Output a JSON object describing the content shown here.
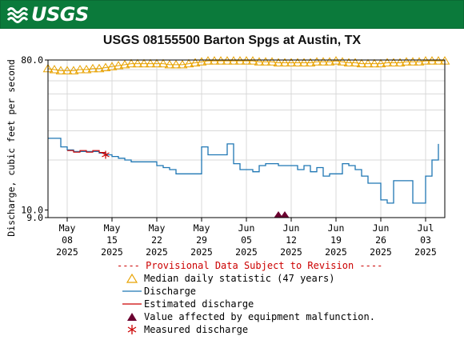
{
  "header": {
    "logo_text": "USGS",
    "logo_icon": "usgs-wave-logo-icon",
    "color": "#0b7a3b"
  },
  "chart_data": {
    "type": "line",
    "title": "USGS 08155500 Barton Spgs at Austin, TX",
    "ylabel": "Discharge, cubic feet per second",
    "y_scale": "log",
    "ylim": [
      9.0,
      80.0
    ],
    "yticks": [
      {
        "value": 9.0,
        "label": "9.0"
      },
      {
        "value": 10.0,
        "label": "10.0"
      },
      {
        "value": 80.0,
        "label": "80.0"
      }
    ],
    "xlim": [
      "2025-05-05",
      "2025-07-06"
    ],
    "xticks": [
      {
        "date": "2025-05-08",
        "line1": "May",
        "line2": "08",
        "line3": "2025"
      },
      {
        "date": "2025-05-15",
        "line1": "May",
        "line2": "15",
        "line3": "2025"
      },
      {
        "date": "2025-05-22",
        "line1": "May",
        "line2": "22",
        "line3": "2025"
      },
      {
        "date": "2025-05-29",
        "line1": "May",
        "line2": "29",
        "line3": "2025"
      },
      {
        "date": "2025-06-05",
        "line1": "Jun",
        "line2": "05",
        "line3": "2025"
      },
      {
        "date": "2025-06-12",
        "line1": "Jun",
        "line2": "12",
        "line3": "2025"
      },
      {
        "date": "2025-06-19",
        "line1": "Jun",
        "line2": "19",
        "line3": "2025"
      },
      {
        "date": "2025-06-26",
        "line1": "Jun",
        "line2": "26",
        "line3": "2025"
      },
      {
        "date": "2025-07-03",
        "line1": "Jul",
        "line2": "03",
        "line3": "2025"
      }
    ],
    "grid": true,
    "series": [
      {
        "name": "Median daily statistic (47 years)",
        "color": "#e8a200",
        "marker": "triangle-open",
        "x": [
          "2025-05-05",
          "2025-05-06",
          "2025-05-07",
          "2025-05-08",
          "2025-05-09",
          "2025-05-10",
          "2025-05-11",
          "2025-05-12",
          "2025-05-13",
          "2025-05-14",
          "2025-05-15",
          "2025-05-16",
          "2025-05-17",
          "2025-05-18",
          "2025-05-19",
          "2025-05-20",
          "2025-05-21",
          "2025-05-22",
          "2025-05-23",
          "2025-05-24",
          "2025-05-25",
          "2025-05-26",
          "2025-05-27",
          "2025-05-28",
          "2025-05-29",
          "2025-05-30",
          "2025-05-31",
          "2025-06-01",
          "2025-06-02",
          "2025-06-03",
          "2025-06-04",
          "2025-06-05",
          "2025-06-06",
          "2025-06-07",
          "2025-06-08",
          "2025-06-09",
          "2025-06-10",
          "2025-06-11",
          "2025-06-12",
          "2025-06-13",
          "2025-06-14",
          "2025-06-15",
          "2025-06-16",
          "2025-06-17",
          "2025-06-18",
          "2025-06-19",
          "2025-06-20",
          "2025-06-21",
          "2025-06-22",
          "2025-06-23",
          "2025-06-24",
          "2025-06-25",
          "2025-06-26",
          "2025-06-27",
          "2025-06-28",
          "2025-06-29",
          "2025-06-30",
          "2025-07-01",
          "2025-07-02",
          "2025-07-03",
          "2025-07-04",
          "2025-07-05",
          "2025-07-06"
        ],
        "values": [
          71,
          70,
          69,
          69,
          69,
          70,
          70,
          71,
          71,
          72,
          73,
          74,
          75,
          76,
          76,
          76,
          76,
          76,
          76,
          75,
          75,
          75,
          76,
          77,
          78,
          79,
          79,
          79,
          79,
          79,
          79,
          79,
          79,
          78,
          78,
          78,
          77,
          77,
          77,
          77,
          77,
          77,
          78,
          78,
          78,
          79,
          78,
          77,
          77,
          76,
          76,
          76,
          76,
          77,
          77,
          77,
          78,
          78,
          78,
          79,
          79,
          79,
          79
        ]
      },
      {
        "name": "Discharge",
        "color": "#1f77b4",
        "x": [
          "2025-05-05",
          "2025-05-06",
          "2025-05-07",
          "2025-05-08",
          "2025-05-09",
          "2025-05-10",
          "2025-05-11",
          "2025-05-12",
          "2025-05-13",
          "2025-05-14",
          "2025-05-15",
          "2025-05-16",
          "2025-05-17",
          "2025-05-18",
          "2025-05-19",
          "2025-05-20",
          "2025-05-21",
          "2025-05-22",
          "2025-05-23",
          "2025-05-24",
          "2025-05-25",
          "2025-05-26",
          "2025-05-27",
          "2025-05-28",
          "2025-05-29",
          "2025-05-30",
          "2025-05-31",
          "2025-06-01",
          "2025-06-02",
          "2025-06-03",
          "2025-06-04",
          "2025-06-05",
          "2025-06-06",
          "2025-06-07",
          "2025-06-08",
          "2025-06-09",
          "2025-06-10",
          "2025-06-11",
          "2025-06-12",
          "2025-06-13",
          "2025-06-14",
          "2025-06-15",
          "2025-06-16",
          "2025-06-17",
          "2025-06-18",
          "2025-06-19",
          "2025-06-20",
          "2025-06-21",
          "2025-06-22",
          "2025-06-23",
          "2025-06-24",
          "2025-06-25",
          "2025-06-26",
          "2025-06-27",
          "2025-06-28",
          "2025-06-29",
          "2025-06-30",
          "2025-07-01",
          "2025-07-02",
          "2025-07-03",
          "2025-07-04",
          "2025-07-05"
        ],
        "values": [
          27,
          27,
          24,
          23,
          22.5,
          22.5,
          22.5,
          22.5,
          22,
          21.5,
          21,
          20.5,
          20,
          19.5,
          19.5,
          19.5,
          19.5,
          18.5,
          18,
          17.5,
          16.5,
          16.5,
          16.5,
          16.5,
          24,
          21.5,
          21.5,
          21.5,
          25,
          19,
          17.5,
          17.5,
          17,
          18.5,
          19,
          19,
          18.5,
          18.5,
          18.5,
          17.5,
          18.5,
          17,
          18,
          16,
          16.5,
          16.5,
          19,
          18.5,
          17.5,
          16,
          14.5,
          14.5,
          11.5,
          11,
          15,
          15,
          15,
          11,
          11,
          16,
          20,
          25
        ]
      },
      {
        "name": "Estimated discharge",
        "color": "#cc0000",
        "x": [
          "2025-05-08",
          "2025-05-09",
          "2025-05-10",
          "2025-05-11",
          "2025-05-12",
          "2025-05-13",
          "2025-05-14"
        ],
        "values": [
          22.8,
          22.3,
          22.8,
          22.3,
          22.8,
          22.2,
          21.6
        ]
      }
    ],
    "flags": [
      {
        "name": "Value affected by equipment malfunction.",
        "color": "#6b0030",
        "marker": "filled-triangle",
        "x": [
          "2025-06-10",
          "2025-06-11"
        ],
        "at": "axis-bottom"
      },
      {
        "name": "Measured discharge",
        "color": "#cc0000",
        "marker": "asterisk",
        "x": [
          "2025-05-14"
        ],
        "values": [
          21.5
        ]
      }
    ]
  },
  "legend": {
    "header": "---- Provisional Data Subject to Revision ----",
    "items": [
      {
        "label": "Median daily statistic (47 years)",
        "icon": "open-triangle-icon",
        "color": "#e8a200"
      },
      {
        "label": "Discharge",
        "icon": "line-icon",
        "color": "#1f77b4"
      },
      {
        "label": "Estimated discharge",
        "icon": "line-icon",
        "color": "#cc0000"
      },
      {
        "label": "Value affected by equipment malfunction.",
        "icon": "filled-triangle-icon",
        "color": "#6b0030"
      },
      {
        "label": "Measured discharge",
        "icon": "asterisk-icon",
        "color": "#cc0000"
      }
    ]
  }
}
